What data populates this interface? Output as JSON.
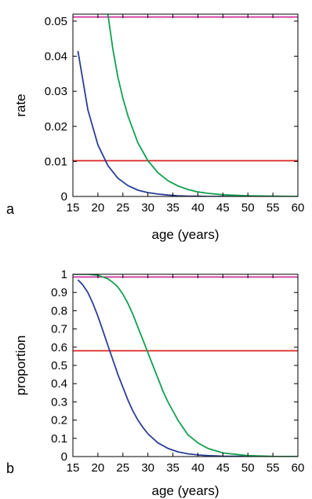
{
  "chart_data": [
    {
      "type": "line",
      "panel_label": "a",
      "xlabel": "age (years)",
      "ylabel": "rate",
      "xlim": [
        15,
        60
      ],
      "ylim": [
        0,
        0.052
      ],
      "x_ticks": [
        "15",
        "20",
        "25",
        "30",
        "35",
        "40",
        "45",
        "50",
        "55",
        "60"
      ],
      "x_tick_values": [
        15,
        20,
        25,
        30,
        35,
        40,
        45,
        50,
        55,
        60
      ],
      "y_ticks": [
        "0",
        "0.01",
        "0.02",
        "0.03",
        "0.04",
        "0.05"
      ],
      "y_tick_values": [
        0,
        0.01,
        0.02,
        0.03,
        0.04,
        0.05
      ],
      "grid": false,
      "series": [
        {
          "color": "#cc3399",
          "x": [
            15,
            60
          ],
          "y": [
            0.0512,
            0.0512
          ]
        },
        {
          "color": "#dd2222",
          "x": [
            15,
            60
          ],
          "y": [
            0.0102,
            0.0102
          ]
        },
        {
          "color": "#2a3f96",
          "x": [
            16,
            18,
            20,
            22,
            24,
            26,
            28,
            30,
            32,
            34,
            36,
            38,
            40,
            42,
            45,
            50,
            55,
            60
          ],
          "y": [
            0.0415,
            0.0247,
            0.0147,
            0.0088,
            0.0052,
            0.0031,
            0.0018,
            0.0011,
            0.0007,
            0.0004,
            0.0002,
            0.0001,
            0.0001,
            0.0,
            0.0,
            0.0,
            0.0,
            0.0
          ]
        },
        {
          "color": "#12a050",
          "x": [
            22,
            23,
            24,
            25,
            26,
            28,
            30,
            32,
            34,
            36,
            38,
            40,
            42,
            45,
            48,
            50,
            55,
            60
          ],
          "y": [
            0.052,
            0.042,
            0.034,
            0.028,
            0.023,
            0.0153,
            0.0102,
            0.0068,
            0.0045,
            0.003,
            0.002,
            0.0013,
            0.0009,
            0.0005,
            0.0003,
            0.0002,
            0.0001,
            0.0
          ]
        }
      ]
    },
    {
      "type": "line",
      "panel_label": "b",
      "xlabel": "age (years)",
      "ylabel": "proportion",
      "xlim": [
        15,
        60
      ],
      "ylim": [
        0,
        1
      ],
      "x_ticks": [
        "15",
        "20",
        "25",
        "30",
        "35",
        "40",
        "45",
        "50",
        "55",
        "60"
      ],
      "x_tick_values": [
        15,
        20,
        25,
        30,
        35,
        40,
        45,
        50,
        55,
        60
      ],
      "y_ticks": [
        "0",
        "0.1",
        "0.2",
        "0.3",
        "0.4",
        "0.5",
        "0.6",
        "0.7",
        "0.8",
        "0.9",
        "1"
      ],
      "y_tick_values": [
        0,
        0.1,
        0.2,
        0.3,
        0.4,
        0.5,
        0.6,
        0.7,
        0.8,
        0.9,
        1
      ],
      "grid": false,
      "series": [
        {
          "color": "#cc3399",
          "x": [
            15,
            60
          ],
          "y": [
            0.985,
            0.985
          ]
        },
        {
          "color": "#dd2222",
          "x": [
            15,
            60
          ],
          "y": [
            0.58,
            0.58
          ]
        },
        {
          "color": "#2a3f96",
          "x": [
            16,
            17,
            18,
            19,
            20,
            21,
            22,
            23,
            24,
            25,
            26,
            27,
            28,
            29,
            30,
            32,
            34,
            36,
            38,
            40,
            42,
            45,
            50,
            55,
            60
          ],
          "y": [
            0.97,
            0.94,
            0.9,
            0.84,
            0.77,
            0.69,
            0.61,
            0.53,
            0.45,
            0.38,
            0.31,
            0.25,
            0.2,
            0.16,
            0.125,
            0.075,
            0.045,
            0.026,
            0.015,
            0.009,
            0.005,
            0.002,
            0.001,
            0.0,
            0.0
          ]
        },
        {
          "color": "#12a050",
          "x": [
            15,
            18,
            20,
            22,
            23,
            24,
            25,
            26,
            27,
            28,
            29,
            30,
            31,
            32,
            33,
            34,
            35,
            36,
            38,
            40,
            42,
            45,
            50,
            55,
            60
          ],
          "y": [
            1.0,
            1.0,
            0.995,
            0.975,
            0.955,
            0.93,
            0.89,
            0.84,
            0.78,
            0.71,
            0.64,
            0.57,
            0.5,
            0.43,
            0.36,
            0.3,
            0.25,
            0.2,
            0.12,
            0.075,
            0.045,
            0.02,
            0.005,
            0.001,
            0.0
          ]
        }
      ]
    }
  ]
}
